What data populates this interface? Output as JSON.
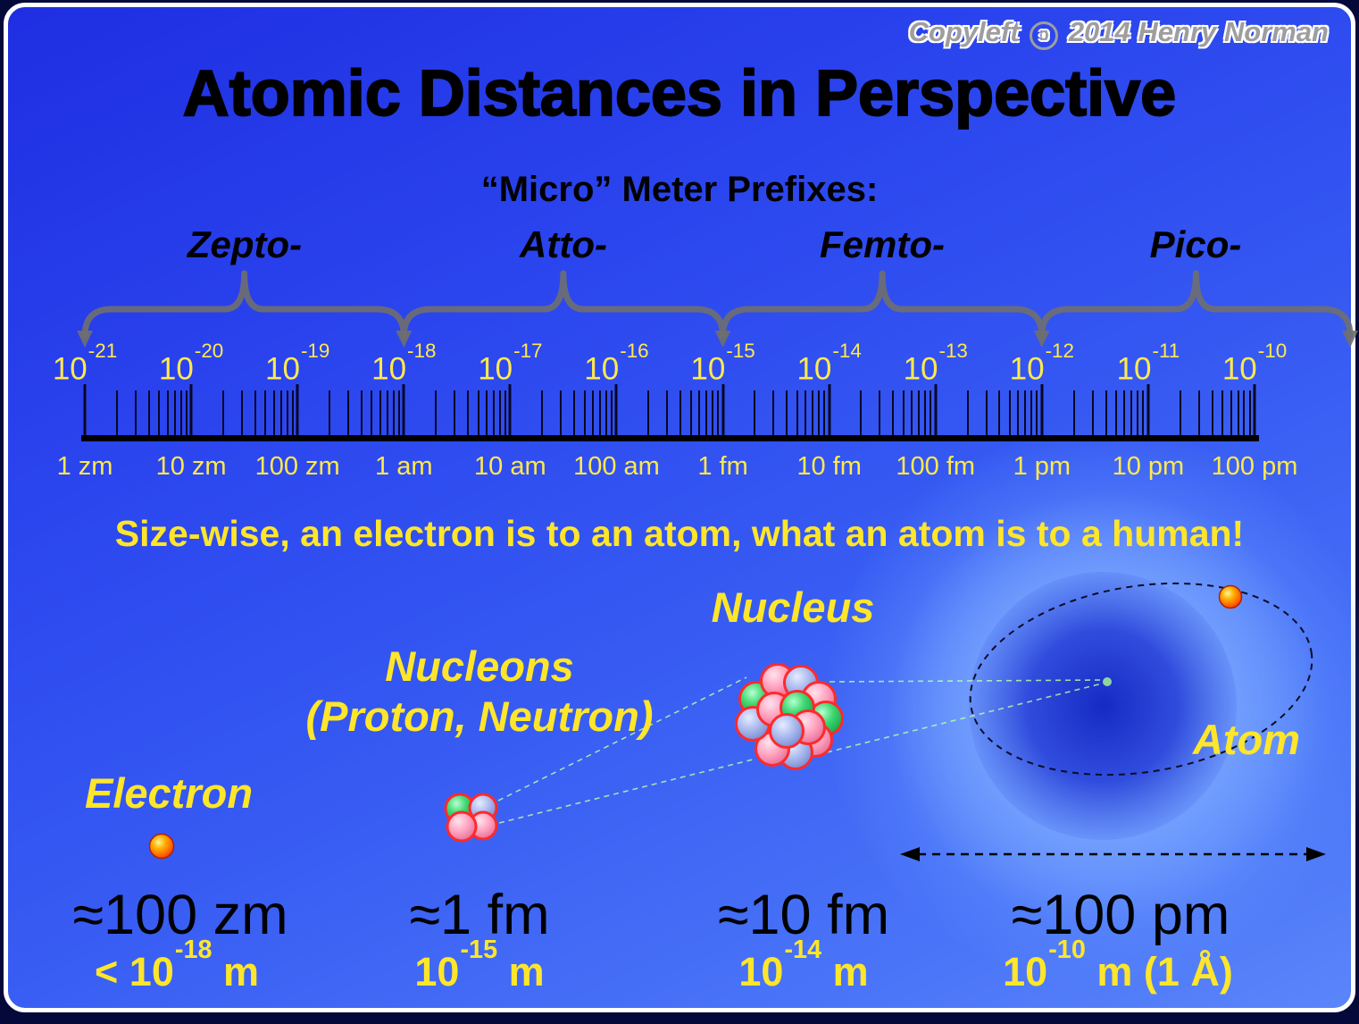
{
  "meta": {
    "copyleft_pre": "Copyleft",
    "copyleft_symbol": "ɔ",
    "copyleft_post": "2014 Henry Norman"
  },
  "title": "Atomic Distances in Perspective",
  "subtitle": "“Micro” Meter Prefixes:",
  "prefixes": [
    {
      "label": "Zepto-"
    },
    {
      "label": "Atto-"
    },
    {
      "label": "Femto-"
    },
    {
      "label": "Pico-"
    }
  ],
  "scale": {
    "powers": [
      {
        "base": "10",
        "exp": "-21"
      },
      {
        "base": "10",
        "exp": "-20"
      },
      {
        "base": "10",
        "exp": "-19"
      },
      {
        "base": "10",
        "exp": "-18"
      },
      {
        "base": "10",
        "exp": "-17"
      },
      {
        "base": "10",
        "exp": "-16"
      },
      {
        "base": "10",
        "exp": "-15"
      },
      {
        "base": "10",
        "exp": "-14"
      },
      {
        "base": "10",
        "exp": "-13"
      },
      {
        "base": "10",
        "exp": "-12"
      },
      {
        "base": "10",
        "exp": "-11"
      },
      {
        "base": "10",
        "exp": "-10"
      }
    ],
    "units": [
      "1 zm",
      "10 zm",
      "100 zm",
      "1 am",
      "10 am",
      "100 am",
      "1 fm",
      "10 fm",
      "100 fm",
      "1 pm",
      "10 pm",
      "100 pm"
    ]
  },
  "tagline": "Size-wise, an electron is to an atom, what an atom is to a human!",
  "objects": {
    "electron": {
      "label": "Electron",
      "size": "≈100 zm",
      "meters_pre": "< 10",
      "meters_exp": "-18",
      "meters_post": " m"
    },
    "nucleons": {
      "label_line1": "Nucleons",
      "label_line2": "(Proton, Neutron)",
      "size": "≈1 fm",
      "meters_pre": "10",
      "meters_exp": "-15",
      "meters_post": " m"
    },
    "nucleus": {
      "label": "Nucleus",
      "size": "≈10 fm",
      "meters_pre": "10",
      "meters_exp": "-14",
      "meters_post": " m"
    },
    "atom": {
      "label": "Atom",
      "size": "≈100 pm",
      "meters_pre": "10",
      "meters_exp": "-10",
      "meters_post": " m (1 Å)"
    }
  },
  "colors": {
    "accent_yellow": "#ffe62a",
    "background_blue": "#2a44ee",
    "brace_gray": "#6f6f6f"
  }
}
